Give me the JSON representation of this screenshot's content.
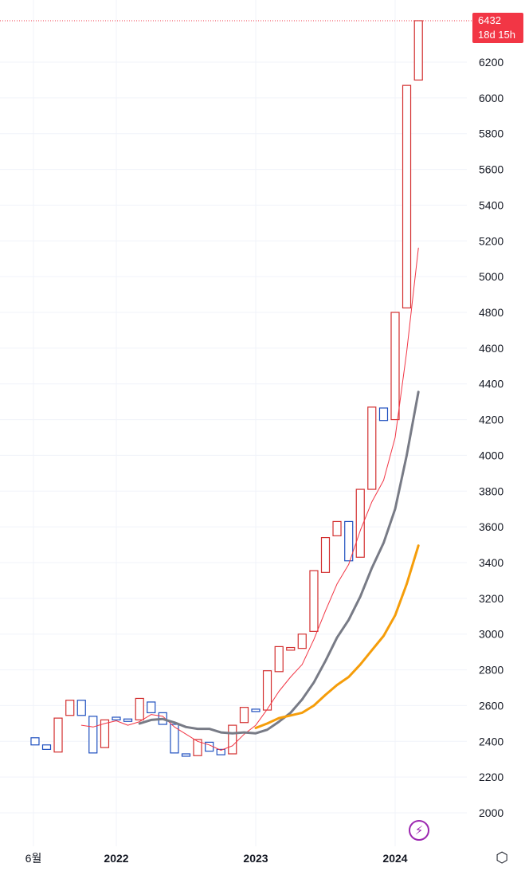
{
  "chart_data": {
    "type": "candlestick",
    "y_ticks": [
      2000,
      2200,
      2400,
      2600,
      2800,
      3000,
      3200,
      3400,
      3600,
      3800,
      4000,
      4200,
      4400,
      4600,
      4800,
      5000,
      5200,
      5400,
      5600,
      5800,
      6000,
      6200
    ],
    "ylim": [
      1900,
      6450
    ],
    "x_ticks": [
      {
        "label": "6월",
        "x": 2021.4,
        "bold": false
      },
      {
        "label": "2022",
        "x": 2022.0,
        "bold": true
      },
      {
        "label": "2023",
        "x": 2023.0,
        "bold": true
      },
      {
        "label": "2024",
        "x": 2024.0,
        "bold": true
      }
    ],
    "xlim": [
      2021.2,
      2024.65
    ],
    "candles": [
      {
        "t": 2021.417,
        "o": 2420,
        "c": 2380
      },
      {
        "t": 2021.5,
        "o": 2380,
        "c": 2355
      },
      {
        "t": 2021.583,
        "o": 2340,
        "c": 2530
      },
      {
        "t": 2021.667,
        "o": 2545,
        "c": 2630
      },
      {
        "t": 2021.75,
        "o": 2630,
        "c": 2545
      },
      {
        "t": 2021.833,
        "o": 2540,
        "c": 2335
      },
      {
        "t": 2021.917,
        "o": 2365,
        "c": 2520
      },
      {
        "t": 2022.0,
        "o": 2535,
        "c": 2520
      },
      {
        "t": 2022.083,
        "o": 2525,
        "c": 2515
      },
      {
        "t": 2022.167,
        "o": 2520,
        "c": 2640
      },
      {
        "t": 2022.25,
        "o": 2620,
        "c": 2560
      },
      {
        "t": 2022.333,
        "o": 2560,
        "c": 2495
      },
      {
        "t": 2022.417,
        "o": 2495,
        "c": 2335
      },
      {
        "t": 2022.5,
        "o": 2330,
        "c": 2320
      },
      {
        "t": 2022.583,
        "o": 2320,
        "c": 2410
      },
      {
        "t": 2022.667,
        "o": 2395,
        "c": 2345
      },
      {
        "t": 2022.75,
        "o": 2355,
        "c": 2325
      },
      {
        "t": 2022.833,
        "o": 2330,
        "c": 2490
      },
      {
        "t": 2022.917,
        "o": 2505,
        "c": 2590
      },
      {
        "t": 2023.0,
        "o": 2580,
        "c": 2570
      },
      {
        "t": 2023.083,
        "o": 2575,
        "c": 2795
      },
      {
        "t": 2023.167,
        "o": 2790,
        "c": 2930
      },
      {
        "t": 2023.25,
        "o": 2910,
        "c": 2925
      },
      {
        "t": 2023.333,
        "o": 2920,
        "c": 3000
      },
      {
        "t": 2023.417,
        "o": 3015,
        "c": 3355
      },
      {
        "t": 2023.5,
        "o": 3345,
        "c": 3540
      },
      {
        "t": 2023.583,
        "o": 3550,
        "c": 3630
      },
      {
        "t": 2023.667,
        "o": 3630,
        "c": 3410
      },
      {
        "t": 2023.75,
        "o": 3430,
        "c": 3810
      },
      {
        "t": 2023.833,
        "o": 3810,
        "c": 4270
      },
      {
        "t": 2023.917,
        "o": 4265,
        "c": 4195
      },
      {
        "t": 2024.0,
        "o": 4200,
        "c": 4800
      },
      {
        "t": 2024.083,
        "o": 4825,
        "c": 6070
      },
      {
        "t": 2024.167,
        "o": 6100,
        "c": 6432
      }
    ],
    "series": [
      {
        "color": "#f23645",
        "width": 1,
        "points": [
          [
            2021.75,
            2490
          ],
          [
            2021.833,
            2480
          ],
          [
            2021.917,
            2500
          ],
          [
            2022.0,
            2515
          ],
          [
            2022.083,
            2490
          ],
          [
            2022.167,
            2510
          ],
          [
            2022.25,
            2550
          ],
          [
            2022.333,
            2540
          ],
          [
            2022.417,
            2480
          ],
          [
            2022.5,
            2440
          ],
          [
            2022.583,
            2400
          ],
          [
            2022.667,
            2380
          ],
          [
            2022.75,
            2350
          ],
          [
            2022.833,
            2375
          ],
          [
            2022.917,
            2440
          ],
          [
            2023.0,
            2490
          ],
          [
            2023.083,
            2580
          ],
          [
            2023.167,
            2680
          ],
          [
            2023.25,
            2760
          ],
          [
            2023.333,
            2830
          ],
          [
            2023.417,
            2970
          ],
          [
            2023.5,
            3130
          ],
          [
            2023.583,
            3280
          ],
          [
            2023.667,
            3390
          ],
          [
            2023.75,
            3580
          ],
          [
            2023.833,
            3740
          ],
          [
            2023.917,
            3860
          ],
          [
            2024.0,
            4100
          ],
          [
            2024.083,
            4580
          ],
          [
            2024.167,
            5160
          ]
        ]
      },
      {
        "color": "#787b86",
        "width": 3,
        "points": [
          [
            2022.167,
            2500
          ],
          [
            2022.25,
            2520
          ],
          [
            2022.333,
            2525
          ],
          [
            2022.417,
            2505
          ],
          [
            2022.5,
            2480
          ],
          [
            2022.583,
            2470
          ],
          [
            2022.667,
            2470
          ],
          [
            2022.75,
            2450
          ],
          [
            2022.833,
            2445
          ],
          [
            2022.917,
            2450
          ],
          [
            2023.0,
            2445
          ],
          [
            2023.083,
            2465
          ],
          [
            2023.167,
            2510
          ],
          [
            2023.25,
            2560
          ],
          [
            2023.333,
            2635
          ],
          [
            2023.417,
            2730
          ],
          [
            2023.5,
            2850
          ],
          [
            2023.583,
            2980
          ],
          [
            2023.667,
            3080
          ],
          [
            2023.75,
            3210
          ],
          [
            2023.833,
            3370
          ],
          [
            2023.917,
            3510
          ],
          [
            2024.0,
            3700
          ],
          [
            2024.083,
            4000
          ],
          [
            2024.167,
            4355
          ]
        ]
      },
      {
        "color": "#f59d0a",
        "width": 3,
        "points": [
          [
            2023.0,
            2475
          ],
          [
            2023.083,
            2500
          ],
          [
            2023.167,
            2530
          ],
          [
            2023.25,
            2545
          ],
          [
            2023.333,
            2560
          ],
          [
            2023.417,
            2600
          ],
          [
            2023.5,
            2660
          ],
          [
            2023.583,
            2715
          ],
          [
            2023.667,
            2760
          ],
          [
            2023.75,
            2830
          ],
          [
            2023.833,
            2910
          ],
          [
            2023.917,
            2990
          ],
          [
            2024.0,
            3105
          ],
          [
            2024.083,
            3280
          ],
          [
            2024.167,
            3495
          ]
        ]
      }
    ],
    "last_price": "6432",
    "countdown": "18d 15h",
    "up_color": "#d32f2f",
    "down_color": "#1e4fbf",
    "grid": true
  }
}
